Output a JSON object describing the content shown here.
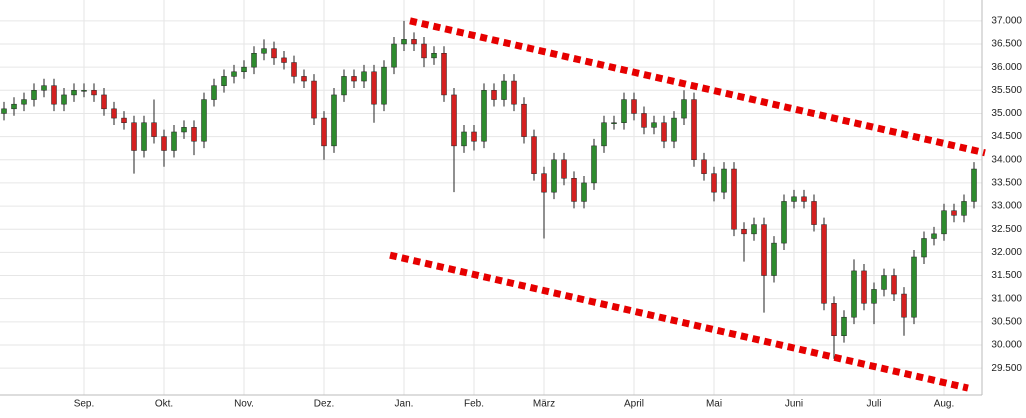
{
  "chart_data": {
    "type": "candlestick",
    "categories": [
      null,
      null,
      null,
      null,
      null,
      null,
      null,
      null,
      "Sep.",
      null,
      null,
      null,
      null,
      null,
      null,
      null,
      "Okt.",
      null,
      null,
      null,
      null,
      null,
      null,
      null,
      "Nov.",
      null,
      null,
      null,
      null,
      null,
      null,
      null,
      "Dez.",
      null,
      null,
      null,
      null,
      null,
      null,
      null,
      "Jan.",
      null,
      null,
      null,
      null,
      null,
      null,
      "Feb.",
      null,
      null,
      null,
      null,
      null,
      null,
      "März",
      null,
      null,
      null,
      null,
      null,
      null,
      null,
      null,
      "April",
      null,
      null,
      null,
      null,
      null,
      null,
      null,
      "Mai",
      null,
      null,
      null,
      null,
      null,
      null,
      null,
      "Juni",
      null,
      null,
      null,
      null,
      null,
      null,
      null,
      "Juli",
      null,
      null,
      null,
      null,
      null,
      null,
      "Aug.",
      null,
      null,
      null
    ],
    "open": [
      35.0,
      35.1,
      35.2,
      35.3,
      35.5,
      35.6,
      35.2,
      35.4,
      35.5,
      35.5,
      35.4,
      35.1,
      34.9,
      34.8,
      34.2,
      34.8,
      34.5,
      34.2,
      34.6,
      34.7,
      34.4,
      35.3,
      35.6,
      35.8,
      35.9,
      36.0,
      36.3,
      36.4,
      36.2,
      36.1,
      35.8,
      35.7,
      34.9,
      34.3,
      35.4,
      35.8,
      35.7,
      35.9,
      35.2,
      36.0,
      36.5,
      36.6,
      36.5,
      36.2,
      36.3,
      35.4,
      34.3,
      34.6,
      34.4,
      35.5,
      35.3,
      35.7,
      35.2,
      34.5,
      33.7,
      33.3,
      34.0,
      33.6,
      33.1,
      33.5,
      34.3,
      34.8,
      34.8,
      35.3,
      35.0,
      34.7,
      34.8,
      34.4,
      34.9,
      35.3,
      34.0,
      33.7,
      33.3,
      33.8,
      32.5,
      32.4,
      32.6,
      31.5,
      32.2,
      33.1,
      33.2,
      33.1,
      32.6,
      30.9,
      30.2,
      30.6,
      31.6,
      30.9,
      31.2,
      31.5,
      31.1,
      30.6,
      31.9,
      32.3,
      32.4,
      32.9,
      32.8,
      33.1
    ],
    "high": [
      35.25,
      35.35,
      35.45,
      35.65,
      35.75,
      35.75,
      35.55,
      35.65,
      35.65,
      35.65,
      35.55,
      35.25,
      35.05,
      34.95,
      34.95,
      35.3,
      34.65,
      34.75,
      34.85,
      34.85,
      35.45,
      35.75,
      35.95,
      36.05,
      36.15,
      36.45,
      36.6,
      36.55,
      36.35,
      36.25,
      35.95,
      35.85,
      35.05,
      35.55,
      35.95,
      35.95,
      36.05,
      36.05,
      36.15,
      36.65,
      37.0,
      36.75,
      36.65,
      36.45,
      36.45,
      35.55,
      34.75,
      34.75,
      35.65,
      35.65,
      35.85,
      35.85,
      35.35,
      34.65,
      33.85,
      34.15,
      34.15,
      33.75,
      33.65,
      34.45,
      34.95,
      34.95,
      35.45,
      35.45,
      35.15,
      34.95,
      34.95,
      35.05,
      35.5,
      35.45,
      34.15,
      33.85,
      33.95,
      33.95,
      32.65,
      32.75,
      32.75,
      32.35,
      33.25,
      33.35,
      33.35,
      33.25,
      32.75,
      31.05,
      30.75,
      31.85,
      31.75,
      31.35,
      31.65,
      31.65,
      31.25,
      32.05,
      32.45,
      32.55,
      33.05,
      33.05,
      33.25,
      33.95
    ],
    "low": [
      34.85,
      34.95,
      35.05,
      35.15,
      35.35,
      35.05,
      35.05,
      35.25,
      35.35,
      35.25,
      34.95,
      34.75,
      34.65,
      33.7,
      34.05,
      34.35,
      33.85,
      34.05,
      34.45,
      34.1,
      34.25,
      35.15,
      35.45,
      35.65,
      35.75,
      35.85,
      36.15,
      36.05,
      35.95,
      35.65,
      35.55,
      34.75,
      34.0,
      34.15,
      35.25,
      35.55,
      35.55,
      34.8,
      35.05,
      35.85,
      36.35,
      36.35,
      36.0,
      36.05,
      35.25,
      33.3,
      34.15,
      34.2,
      34.25,
      35.15,
      35.15,
      35.05,
      34.35,
      33.55,
      32.3,
      33.15,
      33.45,
      32.95,
      32.95,
      33.35,
      34.15,
      34.65,
      34.65,
      34.85,
      34.55,
      34.55,
      34.25,
      34.25,
      34.75,
      33.85,
      33.55,
      33.1,
      33.15,
      32.35,
      31.8,
      32.25,
      30.7,
      31.35,
      32.05,
      32.95,
      32.95,
      32.45,
      30.75,
      29.7,
      30.05,
      30.45,
      30.75,
      30.45,
      31.05,
      30.95,
      30.2,
      30.45,
      31.75,
      32.15,
      32.25,
      32.65,
      32.65,
      32.95
    ],
    "close": [
      35.1,
      35.2,
      35.3,
      35.5,
      35.6,
      35.2,
      35.4,
      35.5,
      35.5,
      35.4,
      35.1,
      34.9,
      34.8,
      34.2,
      34.8,
      34.5,
      34.2,
      34.6,
      34.7,
      34.4,
      35.3,
      35.6,
      35.8,
      35.9,
      36.0,
      36.3,
      36.4,
      36.2,
      36.1,
      35.8,
      35.7,
      34.9,
      34.3,
      35.4,
      35.8,
      35.7,
      35.9,
      35.2,
      36.0,
      36.5,
      36.6,
      36.5,
      36.2,
      36.3,
      35.4,
      34.3,
      34.6,
      34.4,
      35.5,
      35.3,
      35.7,
      35.2,
      34.5,
      33.7,
      33.3,
      34.0,
      33.6,
      33.1,
      33.5,
      34.3,
      34.8,
      34.8,
      35.3,
      35.0,
      34.7,
      34.8,
      34.4,
      34.9,
      35.3,
      34.0,
      33.7,
      33.3,
      33.8,
      32.5,
      32.4,
      32.6,
      31.5,
      32.2,
      33.1,
      33.2,
      33.1,
      32.6,
      30.9,
      30.2,
      30.6,
      31.6,
      30.9,
      31.2,
      31.5,
      31.1,
      30.6,
      31.9,
      32.3,
      32.4,
      32.9,
      32.8,
      33.1,
      33.8
    ],
    "up_color": "#2e8b2e",
    "down_color": "#d42020",
    "wick_color": "#222222",
    "ylim": [
      28.92,
      37.45
    ],
    "yticks": [
      {
        "value": 29.5,
        "label": "29.500"
      },
      {
        "value": 30,
        "label": "30.000"
      },
      {
        "value": 30.5,
        "label": "30.500"
      },
      {
        "value": 31,
        "label": "31.000"
      },
      {
        "value": 31.5,
        "label": "31.500"
      },
      {
        "value": 32,
        "label": "32.000"
      },
      {
        "value": 32.5,
        "label": "32.500"
      },
      {
        "value": 33,
        "label": "33.000"
      },
      {
        "value": 33.5,
        "label": "33.500"
      },
      {
        "value": 34,
        "label": "34.000"
      },
      {
        "value": 34.5,
        "label": "34.500"
      },
      {
        "value": 35,
        "label": "35.000"
      },
      {
        "value": 35.5,
        "label": "35.500"
      },
      {
        "value": 36,
        "label": "36.000"
      },
      {
        "value": 36.5,
        "label": "36.500"
      },
      {
        "value": 37,
        "label": "37.000"
      }
    ],
    "grid": true,
    "trendlines": [
      {
        "color": "#e60000",
        "x": [
          40.6,
          98.1
        ],
        "y": [
          37.0,
          34.15
        ]
      },
      {
        "color": "#e60000",
        "x": [
          38.6,
          96.4
        ],
        "y": [
          31.94,
          29.07
        ]
      }
    ]
  }
}
